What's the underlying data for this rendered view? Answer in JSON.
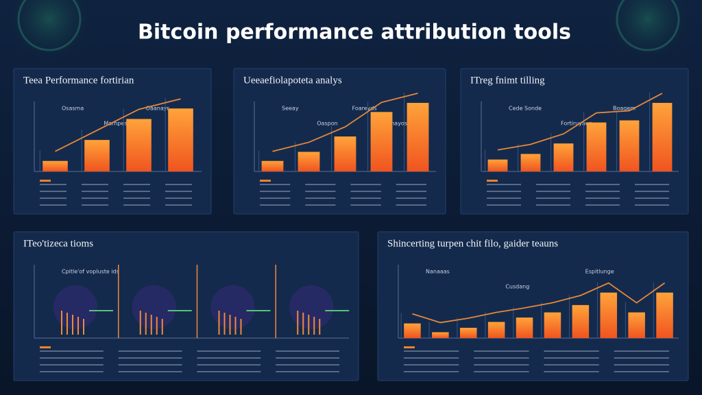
{
  "header": {
    "title": "Bitcoin performance attribution tools"
  },
  "panels": [
    {
      "title": "Teea Performance fortirian",
      "annotations": [
        "Osasma",
        "Marnpes",
        "Oaanayr"
      ],
      "ylim": [
        0,
        100
      ],
      "values": [
        15,
        45,
        75,
        90
      ]
    },
    {
      "title": "Ueeaefiolapoteta analys",
      "annotations": [
        "Seeay",
        "Oaspon",
        "Foareyds",
        "Anayos"
      ],
      "ylim": [
        0,
        100
      ],
      "values": [
        15,
        28,
        50,
        85,
        98
      ]
    },
    {
      "title": "ITreg fnimt tilling",
      "annotations": [
        "Cede Sonde",
        "Fortiruyaue",
        "Boagem"
      ],
      "ylim": [
        0,
        100
      ],
      "values": [
        17,
        25,
        40,
        70,
        73,
        98
      ]
    },
    {
      "title": "ITeo'tizeca tioms",
      "annotations": [
        "Cpitle'of vopluste ids"
      ]
    },
    {
      "title": "Shincerting turpen chit filo, gaider teauns",
      "annotations": [
        "Nanaaas",
        "Cusdang",
        "Espitlunge"
      ],
      "ylim": [
        0,
        100
      ],
      "values": [
        20,
        8,
        14,
        22,
        28,
        35,
        45,
        62,
        35,
        62
      ]
    }
  ]
}
